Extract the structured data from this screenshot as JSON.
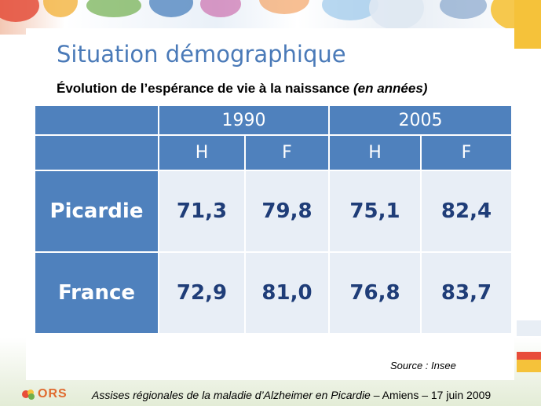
{
  "slide": {
    "title": "Situation démographique",
    "subtitle": "Évolution de l’espérance de vie à la naissance",
    "subtitle_italic": "(en années)"
  },
  "table": {
    "years": [
      "1990",
      "2005"
    ],
    "sexes": [
      "H",
      "F",
      "H",
      "F"
    ],
    "rows": [
      {
        "label": "Picardie",
        "values": [
          "71,3",
          "79,8",
          "75,1",
          "82,4"
        ]
      },
      {
        "label": "France",
        "values": [
          "72,9",
          "81,0",
          "76,8",
          "83,7"
        ]
      }
    ]
  },
  "source": "Source : Insee",
  "footer": {
    "logo_text": "ORS",
    "event": "Assises régionales de la maladie d’Alzheimer en Picardie",
    "place_date": " – Amiens – 17 juin 2009"
  },
  "colors": {
    "header_blue": "#4f81bd",
    "cell_bg": "#e8eef6",
    "value_text": "#1f3d78",
    "title_blue": "#4a7ab8"
  }
}
